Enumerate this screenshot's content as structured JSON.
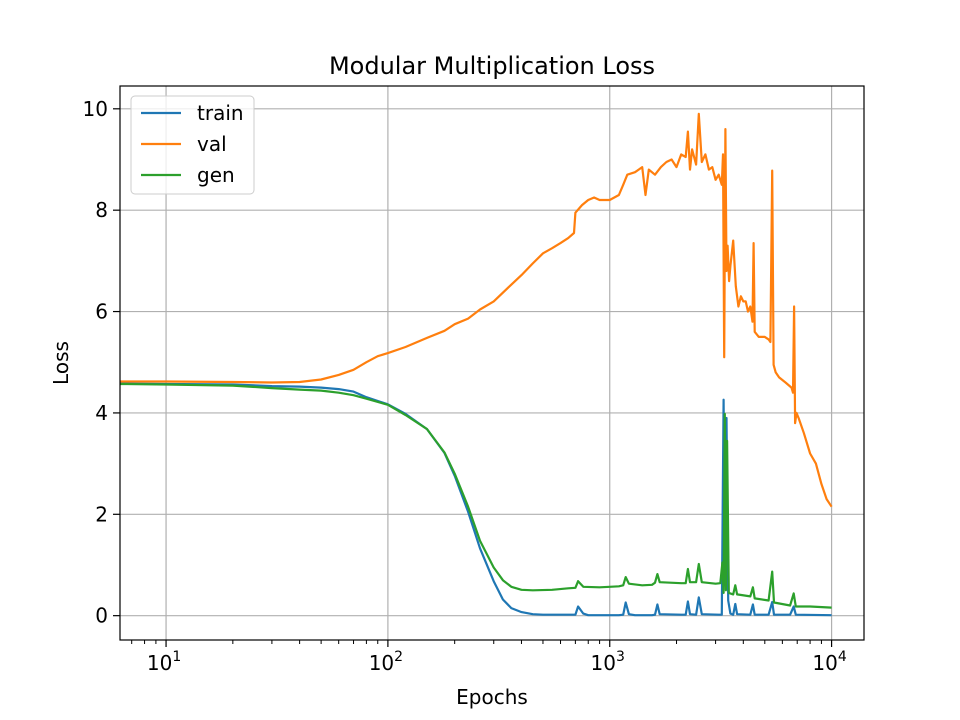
{
  "chart_data": {
    "type": "line",
    "title": "Modular Multiplication Loss",
    "xlabel": "Epochs",
    "ylabel": "Loss",
    "xscale": "log",
    "xlim": [
      6.2,
      14000
    ],
    "ylim": [
      -0.48,
      10.45
    ],
    "grid": true,
    "legend_position": "top-left",
    "x_ticks": [
      {
        "value": 10,
        "base": "10",
        "exp": "1"
      },
      {
        "value": 100,
        "base": "10",
        "exp": "2"
      },
      {
        "value": 1000,
        "base": "10",
        "exp": "3"
      },
      {
        "value": 10000,
        "base": "10",
        "exp": "4"
      }
    ],
    "y_ticks": [
      0,
      2,
      4,
      6,
      8,
      10
    ],
    "series": [
      {
        "name": "train",
        "color": "#1f77b4",
        "points": [
          [
            6.2,
            4.58
          ],
          [
            10,
            4.57
          ],
          [
            20,
            4.56
          ],
          [
            30,
            4.53
          ],
          [
            40,
            4.52
          ],
          [
            50,
            4.5
          ],
          [
            60,
            4.47
          ],
          [
            70,
            4.42
          ],
          [
            80,
            4.31
          ],
          [
            100,
            4.17
          ],
          [
            120,
            3.98
          ],
          [
            150,
            3.68
          ],
          [
            180,
            3.21
          ],
          [
            200,
            2.76
          ],
          [
            230,
            2.05
          ],
          [
            260,
            1.33
          ],
          [
            300,
            0.68
          ],
          [
            330,
            0.32
          ],
          [
            360,
            0.15
          ],
          [
            400,
            0.07
          ],
          [
            450,
            0.03
          ],
          [
            500,
            0.02
          ],
          [
            650,
            0.02
          ],
          [
            700,
            0.02
          ],
          [
            720,
            0.18
          ],
          [
            760,
            0.04
          ],
          [
            800,
            0.01
          ],
          [
            1100,
            0.01
          ],
          [
            1150,
            0.02
          ],
          [
            1180,
            0.26
          ],
          [
            1220,
            0.03
          ],
          [
            1300,
            0.01
          ],
          [
            1550,
            0.01
          ],
          [
            1600,
            0.02
          ],
          [
            1640,
            0.22
          ],
          [
            1680,
            0.03
          ],
          [
            2100,
            0.02
          ],
          [
            2200,
            0.02
          ],
          [
            2250,
            0.28
          ],
          [
            2300,
            0.03
          ],
          [
            2450,
            0.02
          ],
          [
            2520,
            0.36
          ],
          [
            2600,
            0.03
          ],
          [
            3100,
            0.02
          ],
          [
            3200,
            0.02
          ],
          [
            3260,
            4.26
          ],
          [
            3300,
            0.6
          ],
          [
            3360,
            3.9
          ],
          [
            3420,
            0.3
          ],
          [
            3500,
            0.04
          ],
          [
            3600,
            0.02
          ],
          [
            3680,
            0.23
          ],
          [
            3750,
            0.03
          ],
          [
            4300,
            0.02
          ],
          [
            4420,
            0.22
          ],
          [
            4500,
            0.02
          ],
          [
            5200,
            0.02
          ],
          [
            5400,
            0.27
          ],
          [
            5500,
            0.02
          ],
          [
            6500,
            0.02
          ],
          [
            6750,
            0.18
          ],
          [
            6900,
            0.02
          ],
          [
            10000,
            0.01
          ]
        ]
      },
      {
        "name": "val",
        "color": "#ff7f0e",
        "points": [
          [
            6.2,
            4.62
          ],
          [
            10,
            4.62
          ],
          [
            20,
            4.61
          ],
          [
            30,
            4.6
          ],
          [
            40,
            4.61
          ],
          [
            50,
            4.66
          ],
          [
            60,
            4.75
          ],
          [
            70,
            4.85
          ],
          [
            80,
            5.0
          ],
          [
            90,
            5.12
          ],
          [
            100,
            5.18
          ],
          [
            120,
            5.3
          ],
          [
            150,
            5.48
          ],
          [
            180,
            5.62
          ],
          [
            200,
            5.75
          ],
          [
            230,
            5.86
          ],
          [
            260,
            6.04
          ],
          [
            300,
            6.2
          ],
          [
            350,
            6.48
          ],
          [
            400,
            6.72
          ],
          [
            450,
            6.95
          ],
          [
            500,
            7.15
          ],
          [
            550,
            7.25
          ],
          [
            600,
            7.35
          ],
          [
            650,
            7.45
          ],
          [
            690,
            7.55
          ],
          [
            700,
            7.95
          ],
          [
            750,
            8.1
          ],
          [
            800,
            8.2
          ],
          [
            850,
            8.25
          ],
          [
            900,
            8.2
          ],
          [
            1000,
            8.2
          ],
          [
            1100,
            8.3
          ],
          [
            1150,
            8.5
          ],
          [
            1200,
            8.7
          ],
          [
            1300,
            8.75
          ],
          [
            1400,
            8.85
          ],
          [
            1450,
            8.3
          ],
          [
            1500,
            8.8
          ],
          [
            1600,
            8.7
          ],
          [
            1700,
            8.85
          ],
          [
            1800,
            8.95
          ],
          [
            1900,
            9.0
          ],
          [
            2000,
            8.85
          ],
          [
            2100,
            9.1
          ],
          [
            2200,
            9.05
          ],
          [
            2250,
            9.55
          ],
          [
            2300,
            8.8
          ],
          [
            2350,
            9.2
          ],
          [
            2450,
            8.9
          ],
          [
            2520,
            9.9
          ],
          [
            2600,
            8.95
          ],
          [
            2700,
            9.1
          ],
          [
            2800,
            8.8
          ],
          [
            2900,
            8.85
          ],
          [
            3000,
            8.6
          ],
          [
            3100,
            8.7
          ],
          [
            3200,
            8.5
          ],
          [
            3240,
            9.1
          ],
          [
            3280,
            5.1
          ],
          [
            3320,
            9.6
          ],
          [
            3360,
            6.8
          ],
          [
            3400,
            7.3
          ],
          [
            3450,
            6.6
          ],
          [
            3500,
            6.9
          ],
          [
            3600,
            7.4
          ],
          [
            3700,
            6.5
          ],
          [
            3800,
            6.1
          ],
          [
            3900,
            6.3
          ],
          [
            4000,
            6.2
          ],
          [
            4100,
            6.2
          ],
          [
            4200,
            6.0
          ],
          [
            4300,
            6.1
          ],
          [
            4400,
            5.8
          ],
          [
            4450,
            7.35
          ],
          [
            4500,
            5.6
          ],
          [
            4700,
            5.5
          ],
          [
            5000,
            5.5
          ],
          [
            5200,
            5.45
          ],
          [
            5300,
            5.4
          ],
          [
            5400,
            8.78
          ],
          [
            5480,
            4.95
          ],
          [
            5600,
            4.8
          ],
          [
            5800,
            4.7
          ],
          [
            6200,
            4.6
          ],
          [
            6600,
            4.5
          ],
          [
            6700,
            4.4
          ],
          [
            6780,
            6.1
          ],
          [
            6850,
            3.8
          ],
          [
            6950,
            4.0
          ],
          [
            7100,
            3.9
          ],
          [
            7500,
            3.6
          ],
          [
            8000,
            3.2
          ],
          [
            8500,
            3.0
          ],
          [
            9000,
            2.6
          ],
          [
            9500,
            2.3
          ],
          [
            10000,
            2.15
          ]
        ]
      },
      {
        "name": "gen",
        "color": "#2ca02c",
        "points": [
          [
            6.2,
            4.57
          ],
          [
            10,
            4.56
          ],
          [
            20,
            4.54
          ],
          [
            30,
            4.49
          ],
          [
            40,
            4.46
          ],
          [
            50,
            4.44
          ],
          [
            60,
            4.4
          ],
          [
            70,
            4.35
          ],
          [
            80,
            4.28
          ],
          [
            100,
            4.16
          ],
          [
            120,
            3.96
          ],
          [
            150,
            3.68
          ],
          [
            180,
            3.22
          ],
          [
            200,
            2.8
          ],
          [
            230,
            2.15
          ],
          [
            260,
            1.48
          ],
          [
            300,
            0.95
          ],
          [
            330,
            0.7
          ],
          [
            360,
            0.57
          ],
          [
            400,
            0.51
          ],
          [
            450,
            0.5
          ],
          [
            550,
            0.51
          ],
          [
            650,
            0.54
          ],
          [
            700,
            0.55
          ],
          [
            720,
            0.68
          ],
          [
            760,
            0.57
          ],
          [
            900,
            0.56
          ],
          [
            1000,
            0.57
          ],
          [
            1100,
            0.58
          ],
          [
            1150,
            0.6
          ],
          [
            1180,
            0.76
          ],
          [
            1220,
            0.63
          ],
          [
            1400,
            0.6
          ],
          [
            1550,
            0.61
          ],
          [
            1600,
            0.65
          ],
          [
            1640,
            0.82
          ],
          [
            1680,
            0.66
          ],
          [
            2100,
            0.64
          ],
          [
            2200,
            0.64
          ],
          [
            2250,
            0.92
          ],
          [
            2300,
            0.66
          ],
          [
            2450,
            0.66
          ],
          [
            2520,
            1.02
          ],
          [
            2600,
            0.66
          ],
          [
            3000,
            0.63
          ],
          [
            3150,
            0.64
          ],
          [
            3220,
            1.05
          ],
          [
            3260,
            0.45
          ],
          [
            3300,
            3.98
          ],
          [
            3340,
            0.5
          ],
          [
            3380,
            3.45
          ],
          [
            3440,
            0.45
          ],
          [
            3600,
            0.42
          ],
          [
            3680,
            0.6
          ],
          [
            3750,
            0.42
          ],
          [
            4300,
            0.38
          ],
          [
            4420,
            0.56
          ],
          [
            4500,
            0.34
          ],
          [
            5200,
            0.3
          ],
          [
            5400,
            0.87
          ],
          [
            5500,
            0.26
          ],
          [
            6500,
            0.2
          ],
          [
            6750,
            0.44
          ],
          [
            6900,
            0.18
          ],
          [
            8000,
            0.18
          ],
          [
            10000,
            0.16
          ]
        ]
      }
    ]
  }
}
